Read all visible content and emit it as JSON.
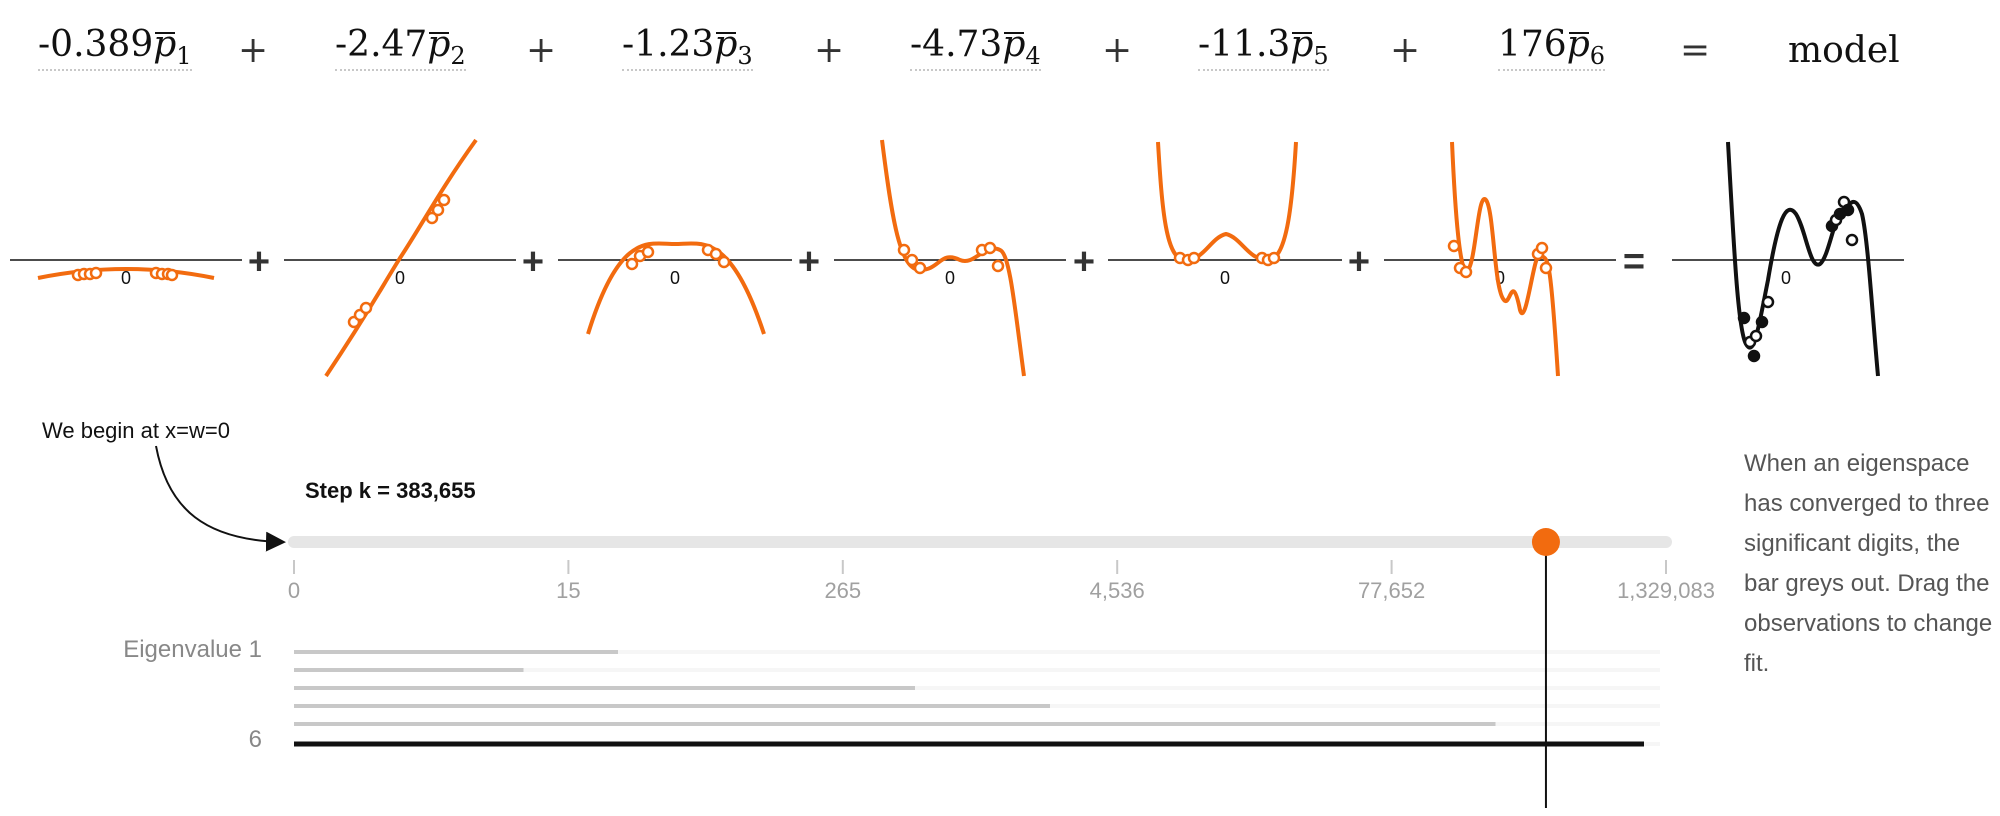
{
  "equation": {
    "terms": [
      {
        "coef": "-0.389",
        "sub": "1"
      },
      {
        "coef": "-2.47",
        "sub": "2"
      },
      {
        "coef": "-1.23",
        "sub": "3"
      },
      {
        "coef": "-4.73",
        "sub": "4"
      },
      {
        "coef": "-11.3",
        "sub": "5"
      },
      {
        "coef": "176",
        "sub": "6"
      }
    ],
    "plus": "+",
    "equals": "=",
    "result": "model"
  },
  "plots": {
    "zero_label": "0",
    "plus": "+",
    "equals": "=",
    "curve_color": "#f26b0f",
    "model_color": "#111111"
  },
  "slider": {
    "step_label": "Step k = 383,655",
    "begin_note": "We begin at x=w=0",
    "tick_labels": [
      "0",
      "15",
      "265",
      "4,536",
      "77,652",
      "1,329,083"
    ],
    "value": 383655,
    "handle_color": "#f26b0f"
  },
  "eigen": {
    "first_label": "Eigenvalue 1",
    "last_label": "6",
    "converged_fraction": [
      0.24,
      0.17,
      0.46,
      0.56,
      0.89,
      1.0
    ]
  },
  "side_note": "When an eigenspace has converged to three significant digits, the bar greys out. Drag the observations to change fit."
}
